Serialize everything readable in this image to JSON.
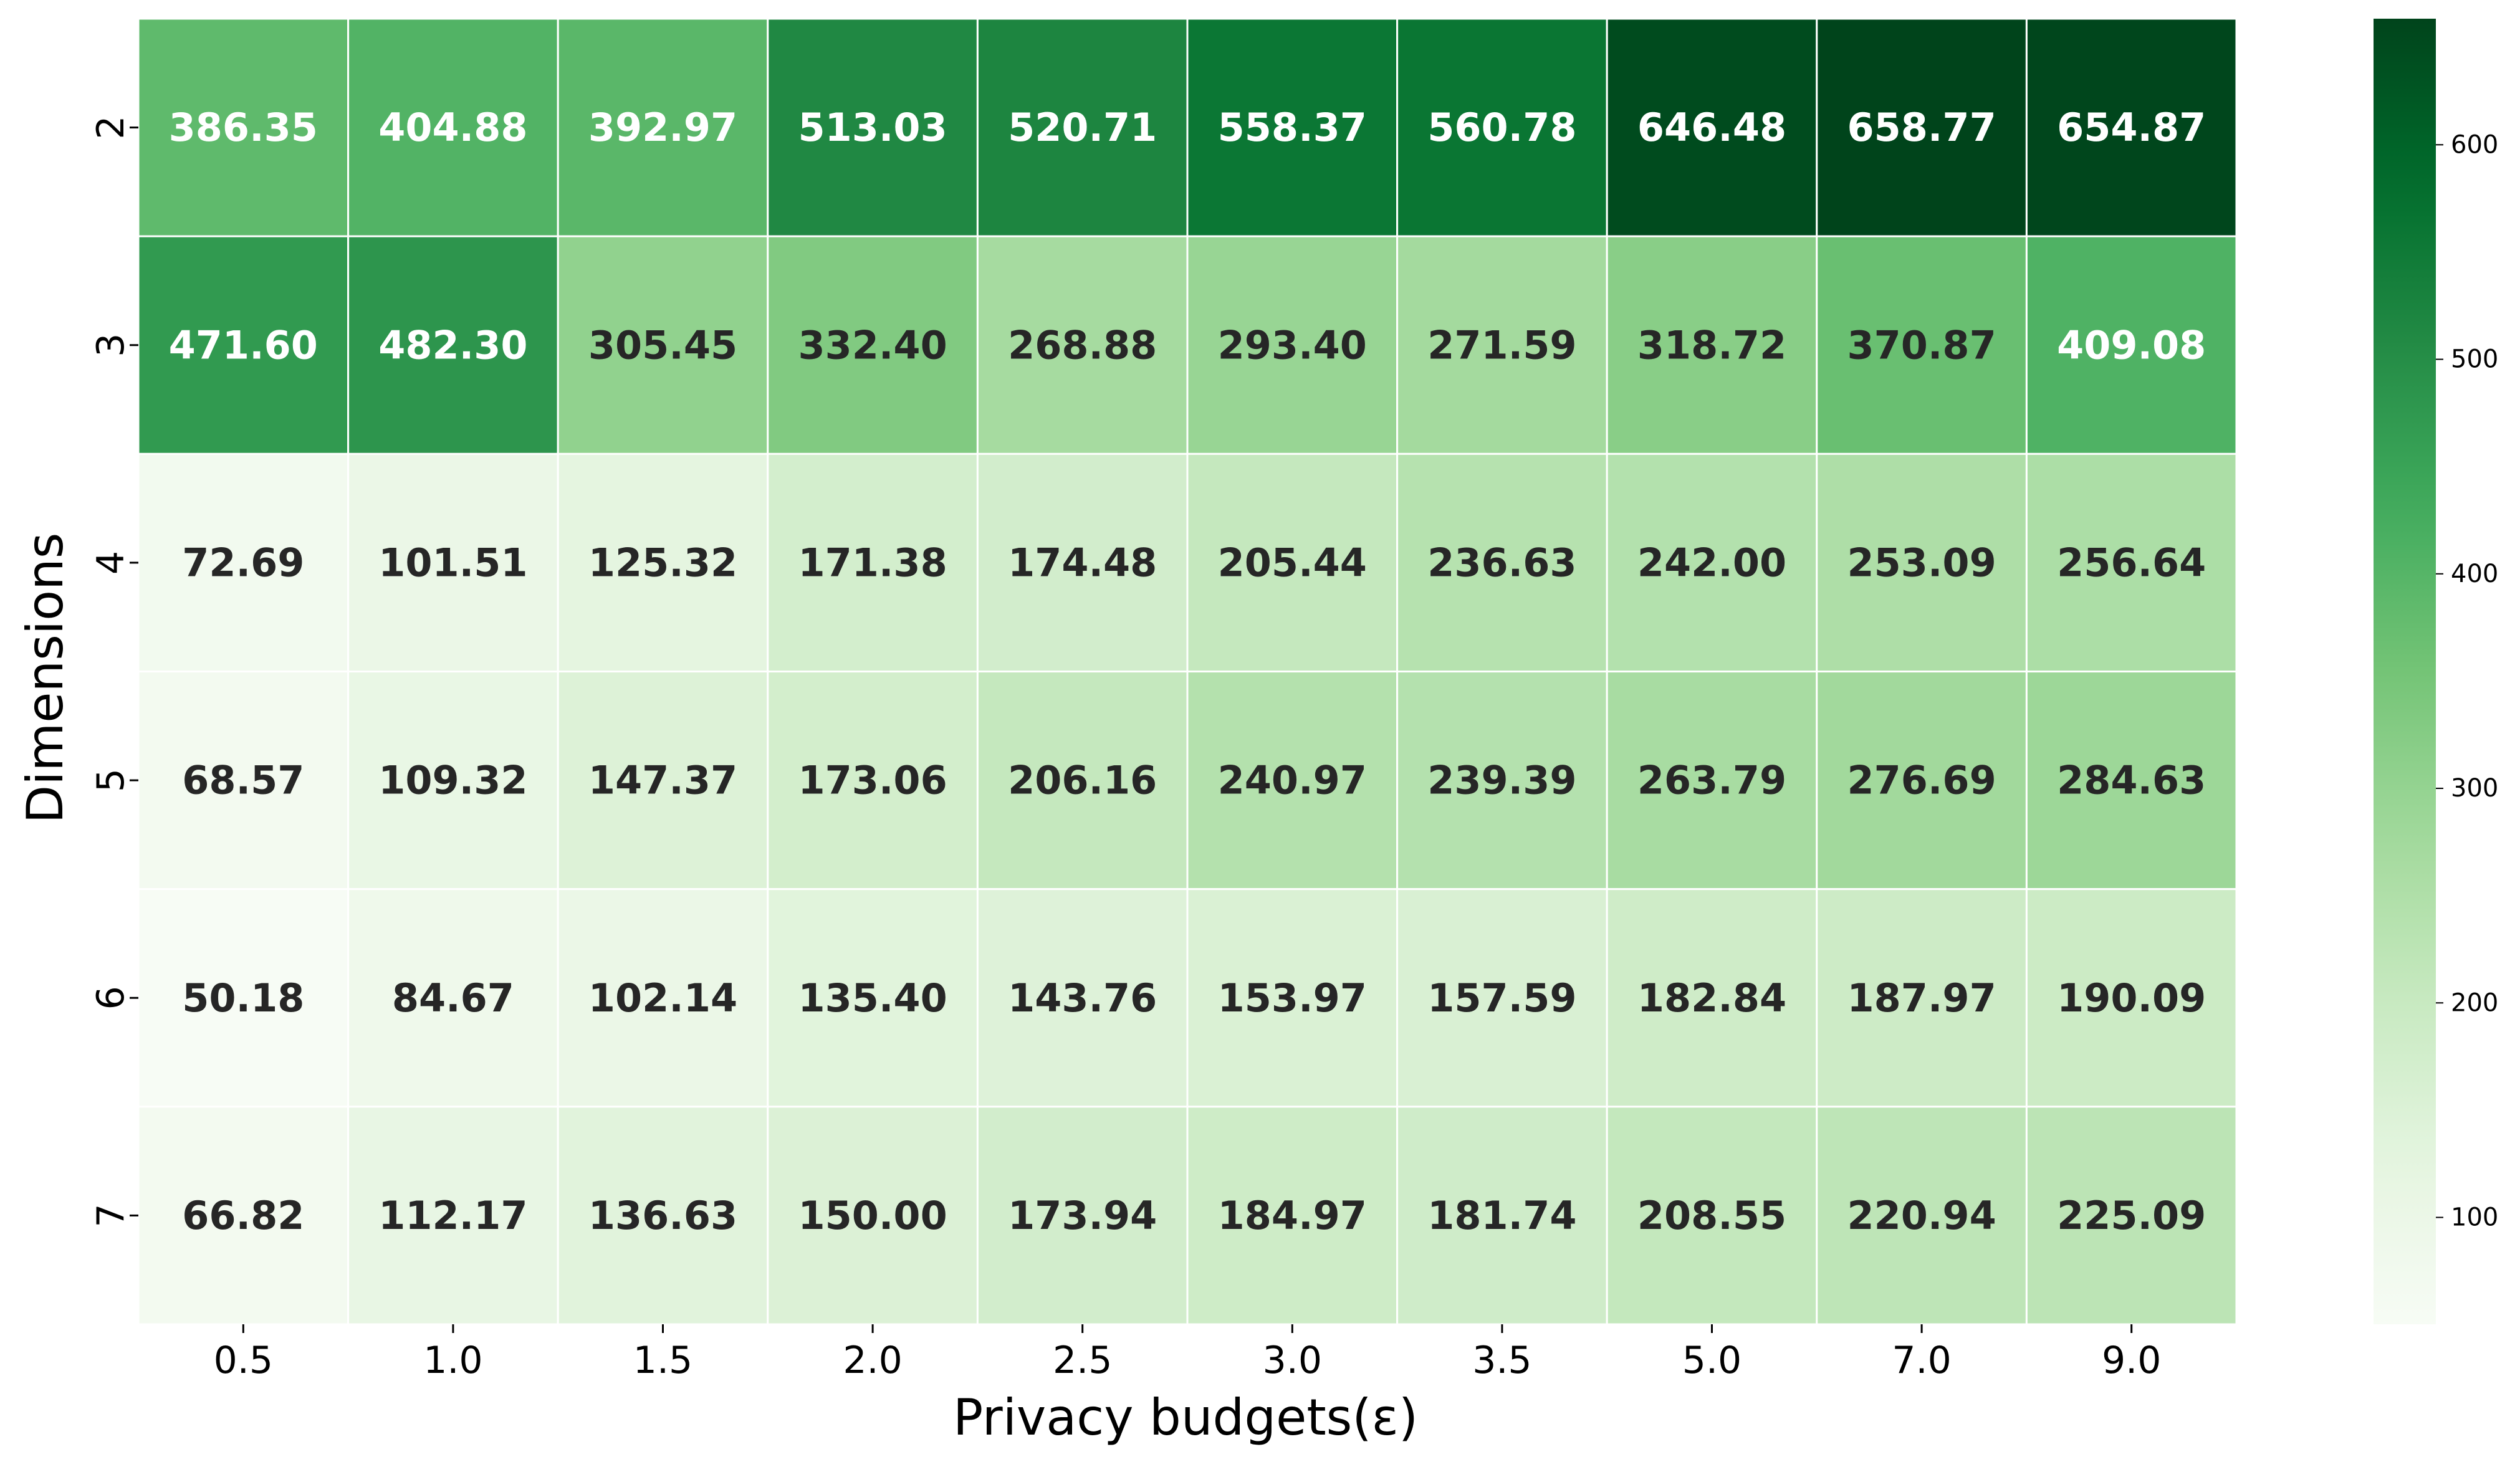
{
  "chart_data": {
    "type": "heatmap",
    "title": "",
    "xlabel": "Privacy budgets(ε)",
    "ylabel": "Dimensions",
    "x_categories": [
      "0.5",
      "1.0",
      "1.5",
      "2.0",
      "2.5",
      "3.0",
      "3.5",
      "5.0",
      "7.0",
      "9.0"
    ],
    "y_categories": [
      "2",
      "3",
      "4",
      "5",
      "6",
      "7"
    ],
    "values": [
      [
        386.35,
        404.88,
        392.97,
        513.03,
        520.71,
        558.37,
        560.78,
        646.48,
        658.77,
        654.87
      ],
      [
        471.6,
        482.3,
        305.45,
        332.4,
        268.88,
        293.4,
        271.59,
        318.72,
        370.87,
        409.08
      ],
      [
        72.69,
        101.51,
        125.32,
        171.38,
        174.48,
        205.44,
        236.63,
        242.0,
        253.09,
        256.64
      ],
      [
        68.57,
        109.32,
        147.37,
        173.06,
        206.16,
        240.97,
        239.39,
        263.79,
        276.69,
        284.63
      ],
      [
        50.18,
        84.67,
        102.14,
        135.4,
        143.76,
        153.97,
        157.59,
        182.84,
        187.97,
        190.09
      ],
      [
        66.82,
        112.17,
        136.63,
        150.0,
        173.94,
        184.97,
        181.74,
        208.55,
        220.94,
        225.09
      ]
    ],
    "colormap": "Greens",
    "colorbar": {
      "range": [
        50.18,
        658.77
      ],
      "ticks": [
        100,
        200,
        300,
        400,
        500,
        600
      ],
      "tick_labels": [
        "100",
        "200",
        "300",
        "400",
        "500",
        "600"
      ]
    },
    "annotation_colors": {
      "dark_text": "#262626",
      "light_text": "#ffffff"
    },
    "grid": false,
    "legend": "colorbar-right"
  }
}
